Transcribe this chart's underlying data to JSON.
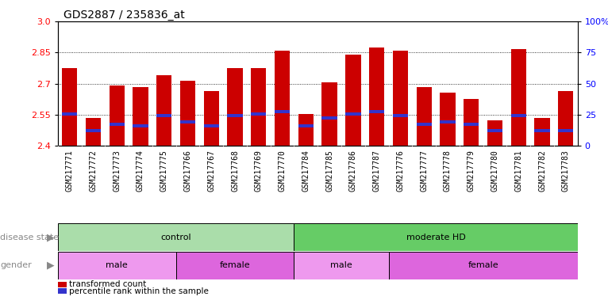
{
  "title": "GDS2887 / 235836_at",
  "samples": [
    "GSM217771",
    "GSM217772",
    "GSM217773",
    "GSM217774",
    "GSM217775",
    "GSM217766",
    "GSM217767",
    "GSM217768",
    "GSM217769",
    "GSM217770",
    "GSM217784",
    "GSM217785",
    "GSM217786",
    "GSM217787",
    "GSM217776",
    "GSM217777",
    "GSM217778",
    "GSM217779",
    "GSM217780",
    "GSM217781",
    "GSM217782",
    "GSM217783"
  ],
  "bar_heights": [
    2.775,
    2.535,
    2.69,
    2.685,
    2.74,
    2.715,
    2.665,
    2.775,
    2.775,
    2.86,
    2.555,
    2.705,
    2.84,
    2.875,
    2.86,
    2.685,
    2.655,
    2.625,
    2.525,
    2.865,
    2.535,
    2.665
  ],
  "blue_positions": [
    2.555,
    2.475,
    2.505,
    2.495,
    2.545,
    2.515,
    2.495,
    2.545,
    2.555,
    2.565,
    2.495,
    2.535,
    2.555,
    2.565,
    2.545,
    2.505,
    2.515,
    2.505,
    2.475,
    2.545,
    2.475,
    2.475
  ],
  "ymin": 2.4,
  "ymax": 3.0,
  "yticks_left": [
    2.4,
    2.55,
    2.7,
    2.85,
    3.0
  ],
  "yticks_right_vals": [
    0,
    25,
    50,
    75,
    100
  ],
  "yticks_right_labels": [
    "0",
    "25",
    "50",
    "75",
    "100%"
  ],
  "bar_color": "#cc0000",
  "blue_color": "#3333cc",
  "bar_width": 0.65,
  "baseline": 2.4,
  "grid_lines": [
    2.55,
    2.7,
    2.85
  ],
  "disease_state_groups": [
    {
      "label": "control",
      "start": 0,
      "end": 10,
      "color": "#aaeea a"
    },
    {
      "label": "moderate HD",
      "start": 10,
      "end": 22,
      "color": "#55dd55"
    }
  ],
  "gender_groups": [
    {
      "label": "male",
      "start": 0,
      "end": 5,
      "color": "#ee99ee"
    },
    {
      "label": "female",
      "start": 5,
      "end": 10,
      "color": "#cc55cc"
    },
    {
      "label": "male",
      "start": 10,
      "end": 14,
      "color": "#ee99ee"
    },
    {
      "label": "female",
      "start": 14,
      "end": 22,
      "color": "#cc55cc"
    }
  ],
  "ds_light_color": "#bbeeaa",
  "ds_dark_color": "#55dd55",
  "g_light_color": "#ee99ee",
  "g_dark_color": "#dd66dd",
  "legend_items": [
    {
      "label": "transformed count",
      "color": "#cc0000"
    },
    {
      "label": "percentile rank within the sample",
      "color": "#3333cc"
    }
  ],
  "xtick_bg": "#dddddd",
  "label_color": "#888888",
  "arrow_color": "#888888",
  "title_fontsize": 10,
  "tick_fontsize": 8,
  "xtick_fontsize": 7,
  "annotation_fontsize": 8
}
